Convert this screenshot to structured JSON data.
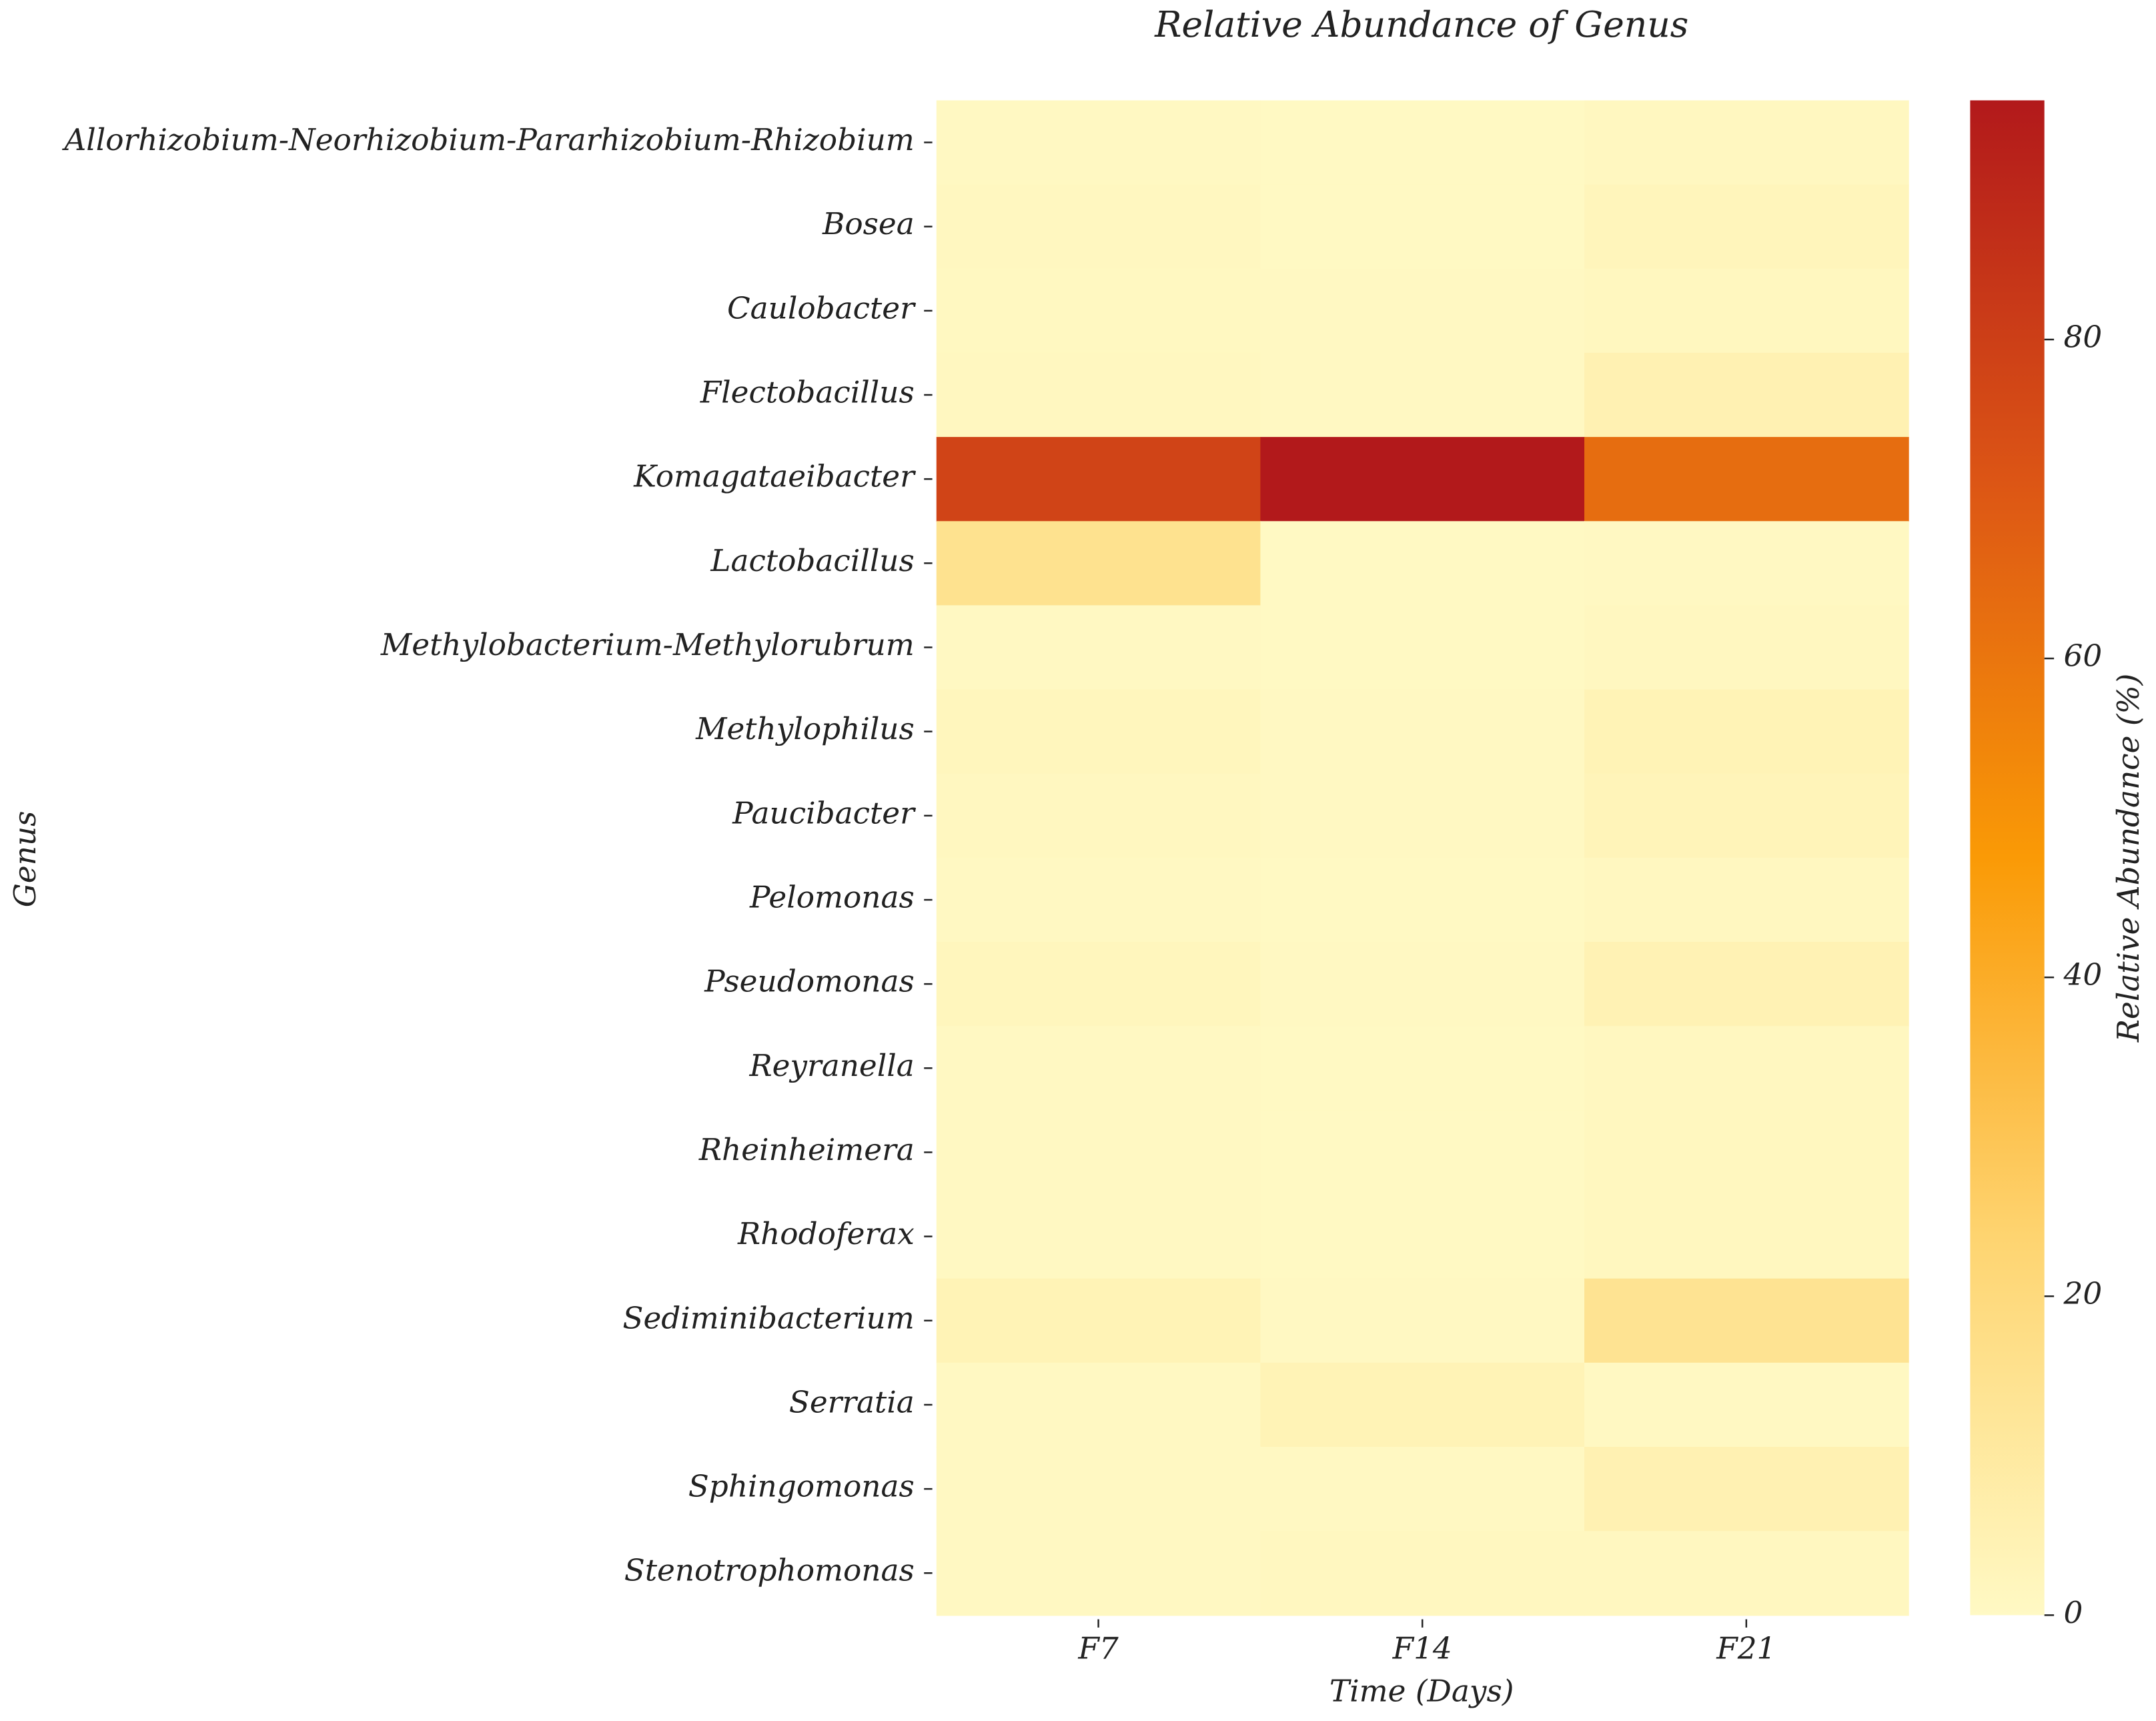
{
  "chart_data": {
    "type": "heatmap",
    "title": "Relative Abundance of Genus",
    "x_label": "Time (Days)",
    "y_label": "Genus",
    "colorbar_label": "Relative Abundance (%)",
    "x": [
      "F7",
      "F14",
      "F21"
    ],
    "categories": [
      "Allorhizobium-Neorhizobium-Pararhizobium-Rhizobium",
      "Bosea",
      "Caulobacter",
      "Flectobacillus",
      "Komagataeibacter",
      "Lactobacillus",
      "Methylobacterium-Methylorubrum",
      "Methylophilus",
      "Paucibacter",
      "Pelomonas",
      "Pseudomonas",
      "Reyranella",
      "Rheinheimera",
      "Rhodoferax",
      "Sediminibacterium",
      "Serratia",
      "Sphingomonas",
      "Stenotrophomonas"
    ],
    "values": [
      [
        0.5,
        0.3,
        1.0
      ],
      [
        1.0,
        0.3,
        2.5
      ],
      [
        0.8,
        0.5,
        1.5
      ],
      [
        1.2,
        0.5,
        5
      ],
      [
        78,
        95,
        63
      ],
      [
        15,
        0.3,
        0.5
      ],
      [
        0.5,
        0.3,
        1.2
      ],
      [
        2,
        0.5,
        4
      ],
      [
        1,
        0.5,
        3
      ],
      [
        0.5,
        0.3,
        1.2
      ],
      [
        2,
        0.5,
        4.5
      ],
      [
        0.5,
        0.3,
        1
      ],
      [
        0.5,
        0.3,
        1.5
      ],
      [
        0.5,
        0.3,
        1.5
      ],
      [
        4,
        0.5,
        14
      ],
      [
        0.5,
        4,
        0.5
      ],
      [
        0.5,
        0.5,
        5
      ],
      [
        0.5,
        1.2,
        1
      ]
    ],
    "zlim": [
      0,
      95
    ],
    "zticks": [
      0,
      20,
      40,
      60,
      80
    ],
    "colors": [
      "#fff9c4",
      "#fed470",
      "#fa9a06",
      "#dc5515",
      "#b2191b"
    ]
  }
}
